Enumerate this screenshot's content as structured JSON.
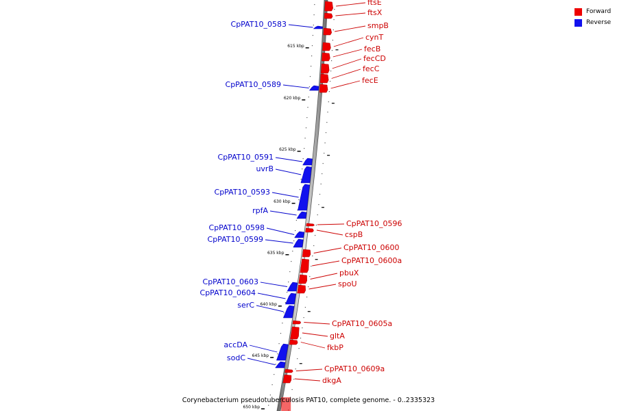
{
  "caption": "Corynebacterium pseudotuberculosis PAT10, complete genome. - 0..2335323",
  "legend": [
    {
      "label": "Forward",
      "color": "#ee0000"
    },
    {
      "label": "Reverse",
      "color": "#1111ee"
    }
  ],
  "colors": {
    "forward": "#ee0000",
    "reverse": "#1111ee",
    "forward_label": "#cc0000",
    "reverse_label": "#0000cc"
  },
  "scale_ticks": [
    {
      "label": "615 kbp",
      "kbp": 615
    },
    {
      "label": "620 kbp",
      "kbp": 620
    },
    {
      "label": "625 kbp",
      "kbp": 625
    },
    {
      "label": "630 kbp",
      "kbp": 630
    },
    {
      "label": "635 kbp",
      "kbp": 635
    },
    {
      "label": "640 kbp",
      "kbp": 640
    },
    {
      "label": "645 kbp",
      "kbp": 645
    },
    {
      "label": "650 kbp",
      "kbp": 650
    }
  ],
  "forward_genes": [
    "ftsE",
    "ftsX",
    "smpB",
    "cynT",
    "fecB",
    "fecCD",
    "fecC",
    "fecE",
    "CpPAT10_0596",
    "cspB",
    "CpPAT10_0600",
    "CpPAT10_0600a",
    "pbuX",
    "spoU",
    "CpPAT10_0605a",
    "gltA",
    "fkbP",
    "CpPAT10_0609a",
    "dkgA"
  ],
  "reverse_genes": [
    "CpPAT10_0583",
    "CpPAT10_0589",
    "CpPAT10_0591",
    "uvrB",
    "CpPAT10_0593",
    "rpfA",
    "CpPAT10_0598",
    "CpPAT10_0599",
    "CpPAT10_0603",
    "CpPAT10_0604",
    "serC",
    "accDA",
    "sodC"
  ]
}
